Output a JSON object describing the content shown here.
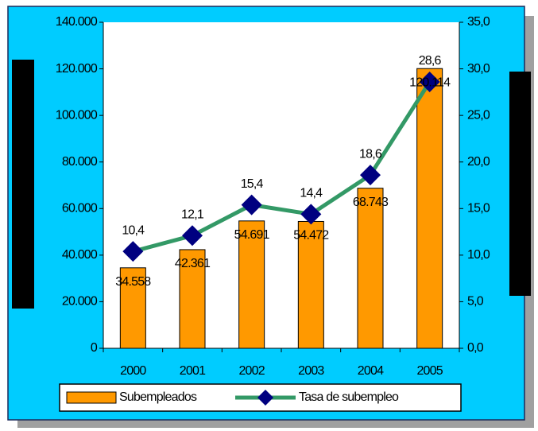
{
  "chart_data": {
    "type": "bar",
    "categories": [
      "2000",
      "2001",
      "2002",
      "2003",
      "2004",
      "2005"
    ],
    "series": [
      {
        "name": "Subempleados",
        "type": "bar",
        "color": "#ff9900",
        "values": [
          34558,
          42361,
          54691,
          54472,
          68743,
          120114
        ],
        "value_labels": [
          "34.558",
          "42.361",
          "54.691",
          "54.472",
          "68.743",
          "120.114"
        ]
      },
      {
        "name": "Tasa de subempleo",
        "type": "line",
        "axis": "y2",
        "color": "#339966",
        "marker_color": "#000080",
        "values": [
          10.4,
          12.1,
          15.4,
          14.4,
          18.6,
          28.6
        ],
        "value_labels": [
          "10,4",
          "12,1",
          "15,4",
          "14,4",
          "18,6",
          "28,6"
        ]
      }
    ],
    "ylim": [
      0,
      140000
    ],
    "yticks": [
      0,
      {
        "value": 20000,
        "label": "20.000"
      },
      {
        "value": 40000,
        "label": "40.000"
      },
      {
        "value": 60000,
        "label": "60.000"
      },
      {
        "value": 80000,
        "label": "80.000"
      },
      {
        "value": 100000,
        "label": "100.000"
      },
      {
        "value": 120000,
        "label": "120.000"
      },
      {
        "value": 140000,
        "label": "140.000"
      }
    ],
    "y2lim": [
      0,
      35
    ],
    "y2ticks": [
      {
        "value": 0,
        "label": "0,0"
      },
      {
        "value": 5,
        "label": "5,0"
      },
      {
        "value": 10,
        "label": "10,0"
      },
      {
        "value": 15,
        "label": "15,0"
      },
      {
        "value": 20,
        "label": "20,0"
      },
      {
        "value": 25,
        "label": "25,0"
      },
      {
        "value": 30,
        "label": "30,0"
      },
      {
        "value": 35,
        "label": "35,0"
      }
    ],
    "legend": "bottom"
  }
}
